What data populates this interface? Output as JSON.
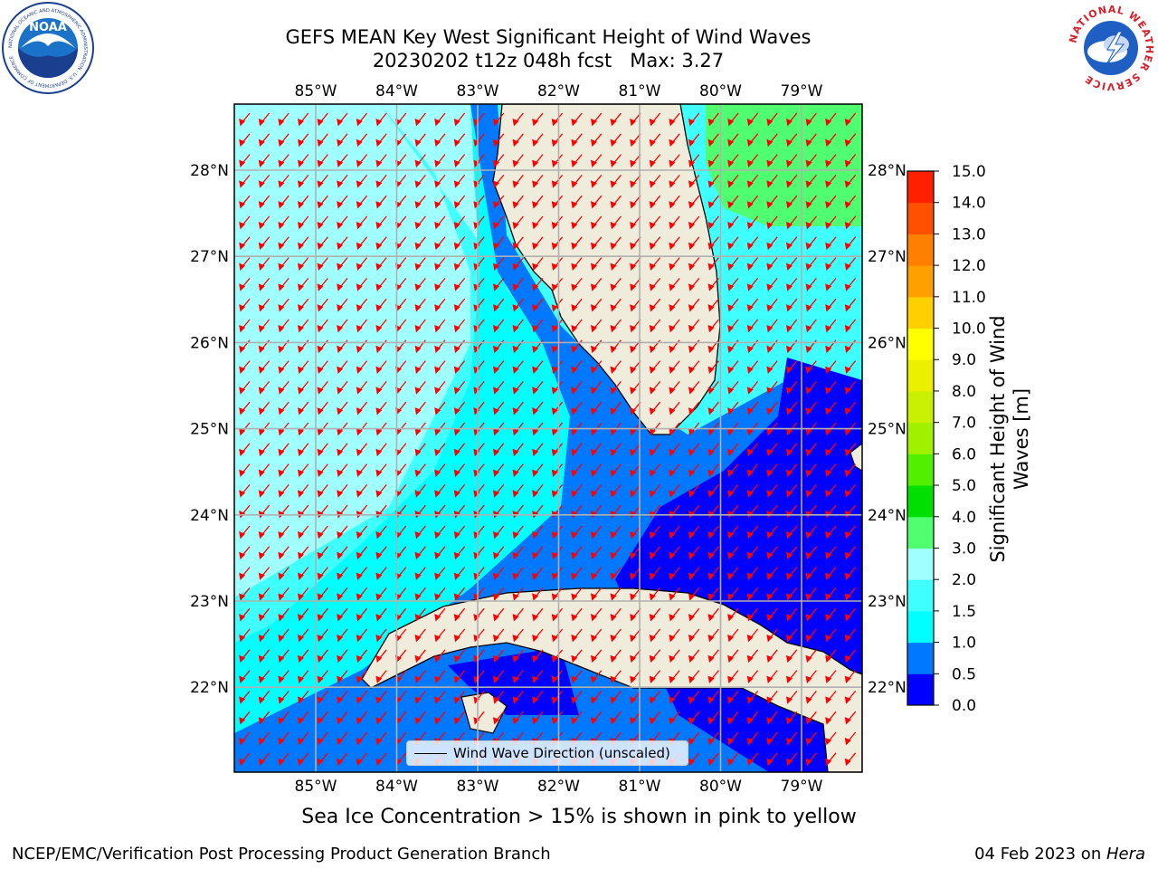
{
  "title": {
    "line1": "GEFS MEAN Key West Significant Height of Wind Waves",
    "line2": "20230202 t12z 048h fcst   Max: 3.27"
  },
  "logos": {
    "noaa": {
      "text": "NOAA",
      "ring_text": "NATIONAL OCEANIC AND ATMOSPHERIC ADMINISTRATION · U.S. DEPARTMENT OF COMMERCE"
    },
    "nws": {
      "ring_text": "NATIONAL WEATHER SERVICE"
    }
  },
  "map": {
    "lon_ticks": [
      "85°W",
      "84°W",
      "83°W",
      "82°W",
      "81°W",
      "80°W",
      "79°W"
    ],
    "lat_ticks": [
      "28°N",
      "27°N",
      "26°N",
      "25°N",
      "24°N",
      "23°N",
      "22°N"
    ],
    "legend": "Wind Wave Direction (unscaled)",
    "colors": {
      "land": "#efecdc",
      "coast": "#000000",
      "grid": "#b0b0b0",
      "arrow": "#ff0000"
    }
  },
  "colorbar": {
    "label": "Significant Height of Wind Waves [m]",
    "ticks": [
      "0.0",
      "0.5",
      "1.0",
      "1.5",
      "2.0",
      "3.0",
      "4.0",
      "5.0",
      "6.0",
      "7.0",
      "8.0",
      "9.0",
      "10.0",
      "11.0",
      "12.0",
      "13.0",
      "14.0",
      "15.0"
    ],
    "colors": [
      "#0000ff",
      "#0078ff",
      "#00ffff",
      "#40ffff",
      "#a0ffff",
      "#50ff70",
      "#00e000",
      "#50f000",
      "#a0f000",
      "#c8f000",
      "#ebf000",
      "#ffff00",
      "#ffd000",
      "#ffa000",
      "#ff8000",
      "#ff5000",
      "#ff2000"
    ]
  },
  "note": "Sea Ice Concentration > 15% is shown in pink to yellow",
  "footer": {
    "left": "NCEP/EMC/Verification Post Processing Product Generation Branch",
    "right_date": "04 Feb 2023 on ",
    "right_host": "Hera"
  }
}
